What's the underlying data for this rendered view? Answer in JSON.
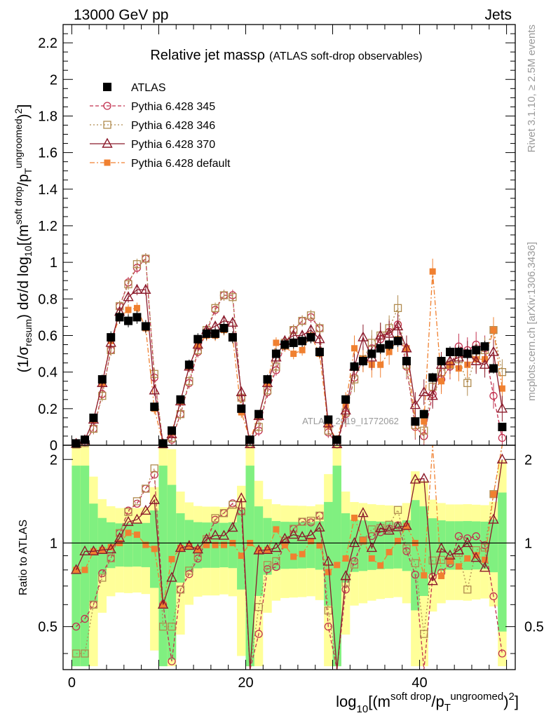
{
  "header": {
    "left": "13000 GeV pp",
    "right": "Jets"
  },
  "side": {
    "rivet": "Rivet 3.1.10, ≥ 2.5M events",
    "mcplots": "mcplots.cern.ch [arXiv:1306.3436]"
  },
  "watermark": "ATLAS_2019_I1772062",
  "chart_data": {
    "type": "line",
    "title": "Relative jet massρ",
    "subtitle": "(ATLAS soft-drop observables)",
    "ylabel": "(1/σresum) dσ/d log10[(msoft drop/pTungroomed)2]",
    "ylabel_parts": {
      "a": "(1/σ",
      "a_sub": "resum",
      "b": ") dσ/d log",
      "b_sub": "10",
      "c": "[(m",
      "c_sup": "soft drop",
      "d": "/p",
      "d_sub": "T",
      "d_sup": "ungroomed",
      "e": ")",
      "e_sup": "2",
      "f": "]"
    },
    "xlabel_parts": {
      "a": "log",
      "a_sub": "10",
      "b": "[(m",
      "b_sup": "soft drop",
      "c": "/p",
      "c_sub": "T",
      "c_sup": "ungroomed",
      "d": ")",
      "d_sup": "2",
      "e": "]"
    },
    "ratio_ylabel": "Ratio to ATLAS",
    "xlim": [
      -1,
      51
    ],
    "ylim": [
      0,
      2.3
    ],
    "ratio_ylim": [
      0.35,
      2.25
    ],
    "x_ticks": [
      "0",
      "20",
      "40"
    ],
    "y_ticks": [
      "0",
      "0.2",
      "0.4",
      "0.6",
      "0.8",
      "1",
      "1.2",
      "1.4",
      "1.6",
      "1.8",
      "2",
      "2.2"
    ],
    "ratio_ticks": [
      "0.5",
      "1",
      "2"
    ],
    "legend_position": "top-left",
    "x": [
      0.5,
      1.5,
      2.5,
      3.5,
      4.5,
      5.5,
      6.5,
      7.5,
      8.5,
      9.5,
      10.5,
      11.5,
      12.5,
      13.5,
      14.5,
      15.5,
      16.5,
      17.5,
      18.5,
      19.5,
      20.5,
      21.5,
      22.5,
      23.5,
      24.5,
      25.5,
      26.5,
      27.5,
      28.5,
      29.5,
      30.5,
      31.5,
      32.5,
      33.5,
      34.5,
      35.5,
      36.5,
      37.5,
      38.5,
      39.5,
      40.5,
      41.5,
      42.5,
      43.5,
      44.5,
      45.5,
      46.5,
      47.5,
      48.5,
      49.5
    ],
    "series": [
      {
        "name": "ATLAS",
        "color": "#000000",
        "marker": "filled-square",
        "dash": "none",
        "values": [
          0.01,
          0.03,
          0.15,
          0.36,
          0.59,
          0.7,
          0.68,
          0.7,
          0.65,
          0.21,
          0.01,
          0.08,
          0.25,
          0.44,
          0.58,
          0.61,
          0.61,
          0.64,
          0.59,
          0.2,
          0.03,
          0.17,
          0.36,
          0.5,
          0.55,
          0.56,
          0.57,
          0.59,
          0.51,
          0.14,
          0.03,
          0.25,
          0.43,
          0.46,
          0.5,
          0.53,
          0.55,
          0.57,
          0.46,
          0.13,
          0.17,
          0.37,
          0.46,
          0.51,
          0.51,
          0.5,
          0.52,
          0.54,
          0.42,
          0.1
        ]
      },
      {
        "name": "Pythia 6.428 345",
        "color": "#c2304f",
        "marker": "open-circle",
        "dash": "5,3",
        "values": [
          0.005,
          0.016,
          0.09,
          0.28,
          0.52,
          0.76,
          0.89,
          0.97,
          1.02,
          0.37,
          0.006,
          0.03,
          0.17,
          0.34,
          0.51,
          0.62,
          0.74,
          0.82,
          0.82,
          0.26,
          0.007,
          0.08,
          0.29,
          0.41,
          0.55,
          0.63,
          0.68,
          0.7,
          0.64,
          0.07,
          0.005,
          0.17,
          0.37,
          0.47,
          0.53,
          0.58,
          0.62,
          0.66,
          0.43,
          0.1,
          0.05,
          0.28,
          0.36,
          0.43,
          0.54,
          0.52,
          0.55,
          0.53,
          0.27,
          0.04
        ]
      },
      {
        "name": "Pythia 6.428 346",
        "color": "#b08b4f",
        "marker": "open-square",
        "dash": "2,3",
        "values": [
          0.004,
          0.012,
          0.09,
          0.27,
          0.52,
          0.76,
          0.88,
          0.99,
          1.02,
          0.39,
          0.005,
          0.04,
          0.17,
          0.35,
          0.52,
          0.63,
          0.75,
          0.82,
          0.81,
          0.26,
          0.006,
          0.1,
          0.3,
          0.43,
          0.56,
          0.63,
          0.68,
          0.71,
          0.64,
          0.08,
          0.006,
          0.18,
          0.36,
          0.47,
          0.56,
          0.6,
          0.64,
          0.75,
          0.44,
          0.11,
          0.08,
          0.32,
          0.4,
          0.44,
          0.47,
          0.34,
          0.49,
          0.52,
          0.63,
          0.4
        ]
      },
      {
        "name": "Pythia 6.428 370",
        "color": "#8b1a2b",
        "marker": "open-triangle",
        "dash": "none",
        "values": [
          0.008,
          0.028,
          0.14,
          0.34,
          0.56,
          0.73,
          0.81,
          0.85,
          0.85,
          0.3,
          0.006,
          0.06,
          0.24,
          0.43,
          0.55,
          0.63,
          0.65,
          0.68,
          0.67,
          0.29,
          0.006,
          0.16,
          0.34,
          0.48,
          0.57,
          0.6,
          0.6,
          0.63,
          0.58,
          0.12,
          0.006,
          0.19,
          0.43,
          0.59,
          0.48,
          0.6,
          0.61,
          0.65,
          0.53,
          0.22,
          0.29,
          0.27,
          0.44,
          0.46,
          0.48,
          0.5,
          0.46,
          0.44,
          0.51,
          0.2
        ]
      },
      {
        "name": "Pythia 6.428 default",
        "color": "#f08030",
        "marker": "filled-small-square",
        "dash": "7,3,2,3",
        "values": [
          0.008,
          0.024,
          0.14,
          0.34,
          0.57,
          0.7,
          0.74,
          0.75,
          0.64,
          0.2,
          0.006,
          0.07,
          0.24,
          0.43,
          0.55,
          0.6,
          0.6,
          0.63,
          0.59,
          0.18,
          0.03,
          0.16,
          0.34,
          0.56,
          0.54,
          0.5,
          0.52,
          0.6,
          0.5,
          0.11,
          0.025,
          0.22,
          0.53,
          0.47,
          0.44,
          0.44,
          0.51,
          0.58,
          0.53,
          0.13,
          0.13,
          0.95,
          0.35,
          0.44,
          0.42,
          0.44,
          0.47,
          0.47,
          0.63,
          0.31
        ]
      }
    ]
  }
}
